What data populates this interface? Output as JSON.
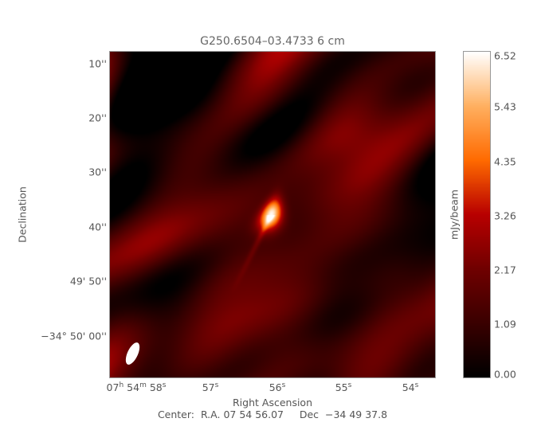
{
  "chart_data": {
    "type": "heatmap",
    "title": "G250.6504–03.4733 6 cm",
    "xlabel": "Right Ascension",
    "ylabel": "Declination",
    "x_ticks": [
      {
        "label": "07",
        "sup": "h",
        "label2": " 54",
        "sup2": "m",
        "label3": " 58",
        "sup3": "s"
      },
      {
        "label": "57",
        "sup": "s"
      },
      {
        "label": "56",
        "sup": "s"
      },
      {
        "label": "55",
        "sup": "s"
      },
      {
        "label": "54",
        "sup": "s"
      }
    ],
    "y_ticks": [
      "10''",
      "20''",
      "30''",
      "40''",
      "49' 50''",
      "−34° 50' 00''"
    ],
    "y_tick_parts": {
      "prefix": "−34",
      "sup": "o",
      "rest": " 50' 00''"
    },
    "colorbar": {
      "label": "mJy/beam",
      "ticks": [
        "6.52",
        "5.43",
        "4.35",
        "3.26",
        "2.17",
        "1.09",
        "0.00"
      ],
      "range": [
        0.0,
        6.52
      ],
      "colormap": [
        "#000000",
        "#3a0000",
        "#700000",
        "#b80000",
        "#ff6a00",
        "#ffb060",
        "#ffffff"
      ]
    },
    "source_peak_mJy": 6.52,
    "background_level_mJy": [
      0.3,
      2.2
    ],
    "beam_color": "#ffffff",
    "footer": "Center:  R.A. 07 54 56.07     Dec  −34 49 37.8"
  }
}
